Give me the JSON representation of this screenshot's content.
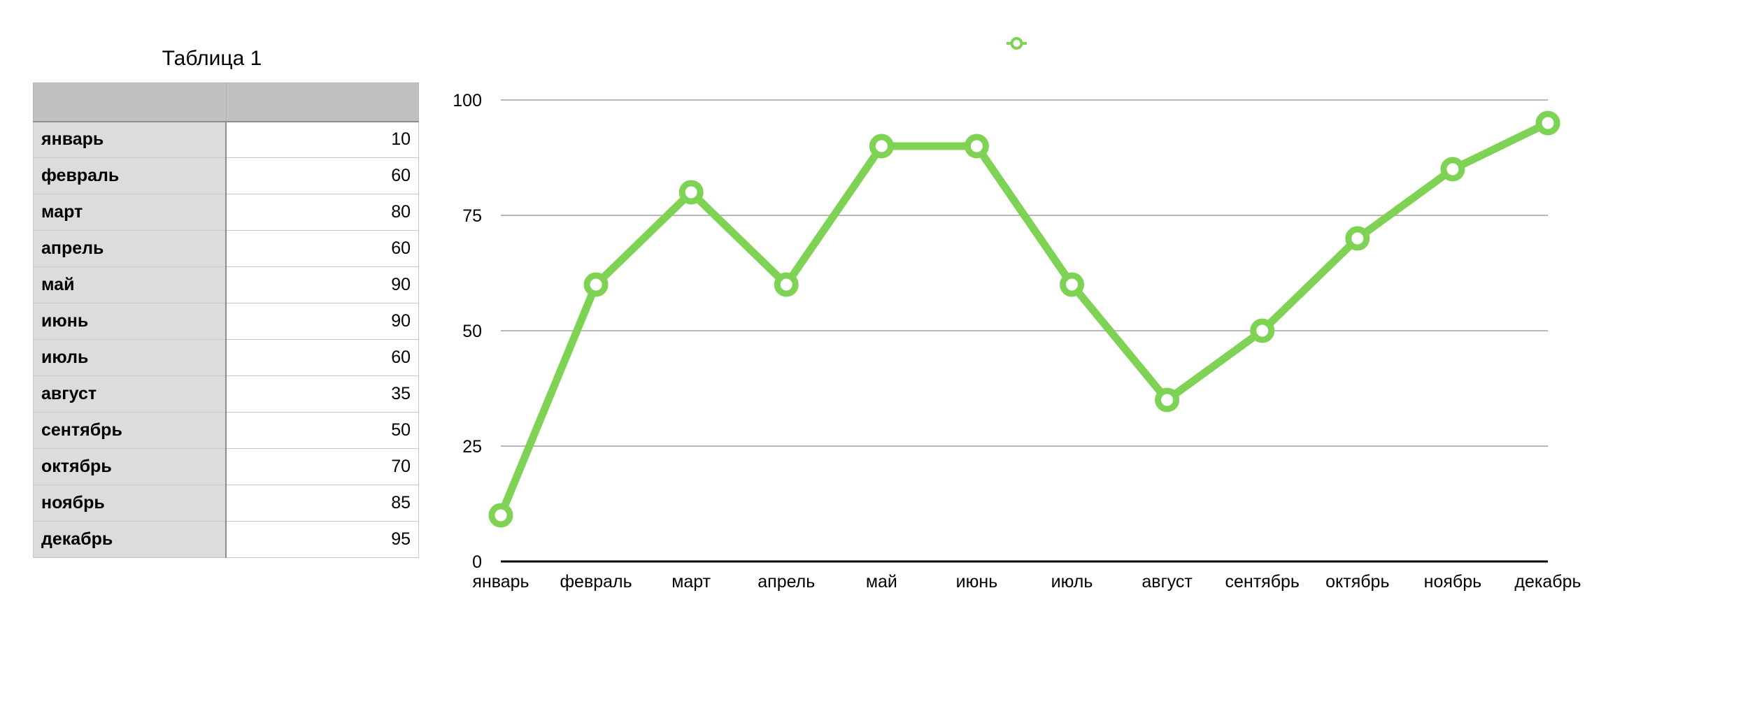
{
  "table": {
    "title": "Таблица 1",
    "header": [
      "",
      ""
    ],
    "rows": [
      {
        "label": "январь",
        "value": "10"
      },
      {
        "label": "февраль",
        "value": "60"
      },
      {
        "label": "март",
        "value": "80"
      },
      {
        "label": "апрель",
        "value": "60"
      },
      {
        "label": "май",
        "value": "90"
      },
      {
        "label": "июнь",
        "value": "90"
      },
      {
        "label": "июль",
        "value": "60"
      },
      {
        "label": "август",
        "value": "35"
      },
      {
        "label": "сентябрь",
        "value": "50"
      },
      {
        "label": "октябрь",
        "value": "70"
      },
      {
        "label": "ноябрь",
        "value": "85"
      },
      {
        "label": "декабрь",
        "value": "95"
      }
    ]
  },
  "chart_data": {
    "type": "line",
    "categories": [
      "январь",
      "февраль",
      "март",
      "апрель",
      "май",
      "июнь",
      "июль",
      "август",
      "сентябрь",
      "октябрь",
      "ноябрь",
      "декабрь"
    ],
    "series": [
      {
        "name": "",
        "values": [
          10,
          60,
          80,
          60,
          90,
          90,
          60,
          35,
          50,
          70,
          85,
          95
        ],
        "color": "#7ed355"
      }
    ],
    "ylim": [
      0,
      100
    ],
    "yticks": [
      0,
      25,
      50,
      75,
      100
    ],
    "grid": true,
    "legend": "top-center",
    "title": "",
    "xlabel": "",
    "ylabel": ""
  }
}
